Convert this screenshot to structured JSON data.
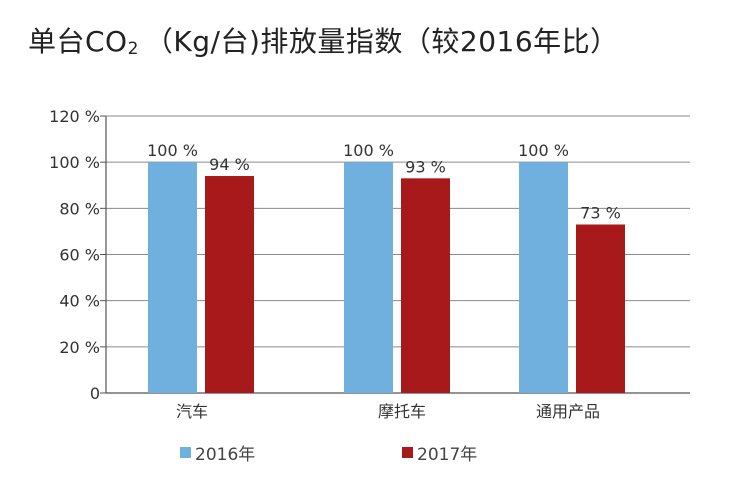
{
  "chart_data": {
    "type": "bar",
    "title_main": "单台CO",
    "title_sub": "2",
    "title_rest": "（Kg/台)排放量指数（较2016年比）",
    "categories": [
      "汽车",
      "摩托车",
      "通用产品"
    ],
    "series": [
      {
        "name": "2016年",
        "values": [
          100,
          100,
          100
        ],
        "labels": [
          "100 %",
          "100 %",
          "100 %"
        ],
        "color": "#6fb0df"
      },
      {
        "name": "2017年",
        "values": [
          94,
          93,
          73
        ],
        "labels": [
          "94 %",
          "93 %",
          "73 %"
        ],
        "color": "#a8191b"
      }
    ],
    "ylim": [
      0,
      120
    ],
    "yticks": [
      0,
      20,
      40,
      60,
      80,
      100,
      120
    ],
    "ytick_labels": [
      "0",
      "20 %",
      "40 %",
      "60 %",
      "80 %",
      "100 %",
      "120 %"
    ],
    "grid": true,
    "legend_position": "bottom"
  }
}
